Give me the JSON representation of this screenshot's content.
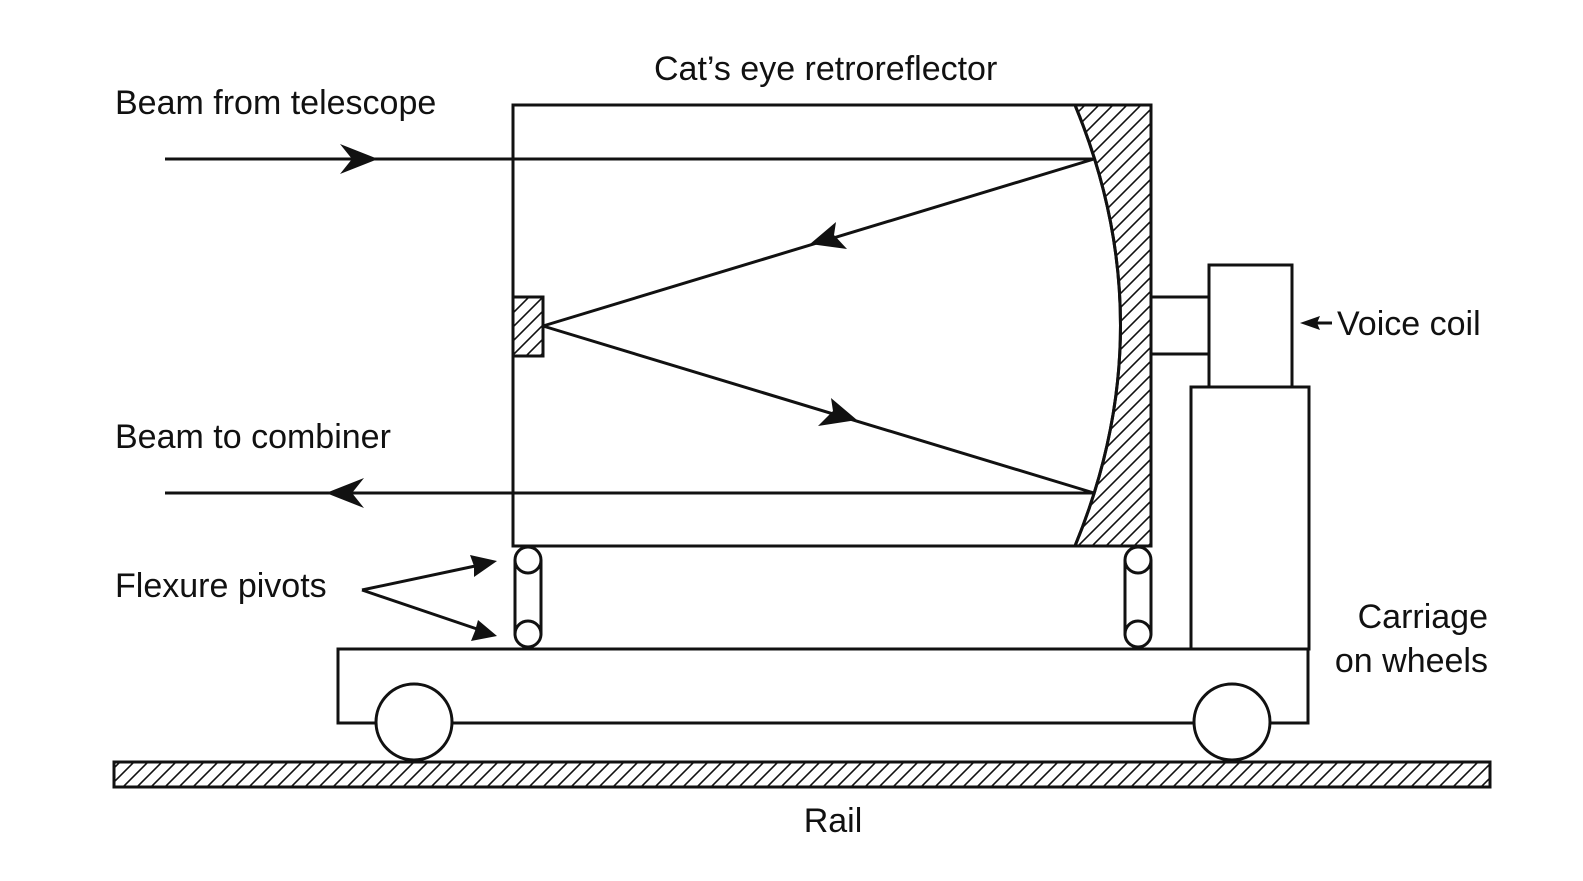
{
  "labels": {
    "retroreflector": "Cat’s eye retroreflector",
    "beam_in": "Beam from telescope",
    "beam_out": "Beam to combiner",
    "voice_coil": "Voice coil",
    "flexure_pivots": "Flexure pivots",
    "carriage_line1": "Carriage",
    "carriage_line2": "on wheels",
    "rail": "Rail"
  },
  "colors": {
    "line": "#111111",
    "background": "#ffffff"
  }
}
